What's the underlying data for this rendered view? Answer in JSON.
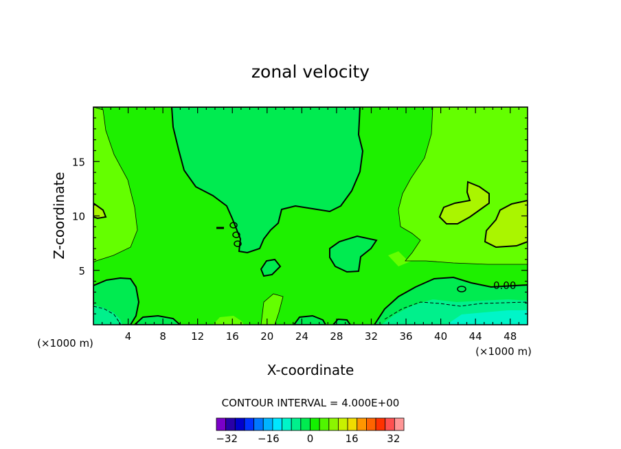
{
  "chart_data": {
    "type": "heatmap",
    "subtype": "filled-contour",
    "title": "zonal velocity",
    "xlabel": "X-coordinate",
    "ylabel": "Z-coordinate",
    "x_unit_left": "(×1000 m)",
    "x_unit_right": "(×1000 m)",
    "xlim": [
      0,
      50
    ],
    "ylim": [
      0,
      20
    ],
    "x_ticks": [
      4,
      8,
      12,
      16,
      20,
      24,
      28,
      32,
      36,
      40,
      44,
      48
    ],
    "y_ticks": [
      5,
      10,
      15
    ],
    "contour_label": "0.00",
    "contour_interval_text": "CONTOUR INTERVAL = 4.000E+00",
    "colorbar": {
      "min": -36,
      "max": 36,
      "step": 4,
      "tick_values": [
        -32,
        -16,
        0,
        16,
        32
      ],
      "tick_labels": [
        "−32",
        "−16",
        "0",
        "16",
        "32"
      ],
      "colors": [
        "#7b00c8",
        "#2800a8",
        "#0000cc",
        "#0032ff",
        "#0078ff",
        "#00b4ff",
        "#00e6ff",
        "#00f5c8",
        "#00f08c",
        "#00eb50",
        "#14f000",
        "#50f500",
        "#8cf500",
        "#c8f000",
        "#f0dc00",
        "#ff9600",
        "#ff6400",
        "#ff3200",
        "#ff5050",
        "#ff9696"
      ]
    },
    "regions": [
      {
        "name": "0 to 4",
        "color": "#1ef000"
      },
      {
        "name": "-4 to 0",
        "color": "#00eb50"
      },
      {
        "name": "4 to 8",
        "color": "#64ff00"
      },
      {
        "name": "8 to 12",
        "color": "#aaf500"
      },
      {
        "name": "-8 to -4",
        "color": "#00f08c"
      }
    ]
  }
}
